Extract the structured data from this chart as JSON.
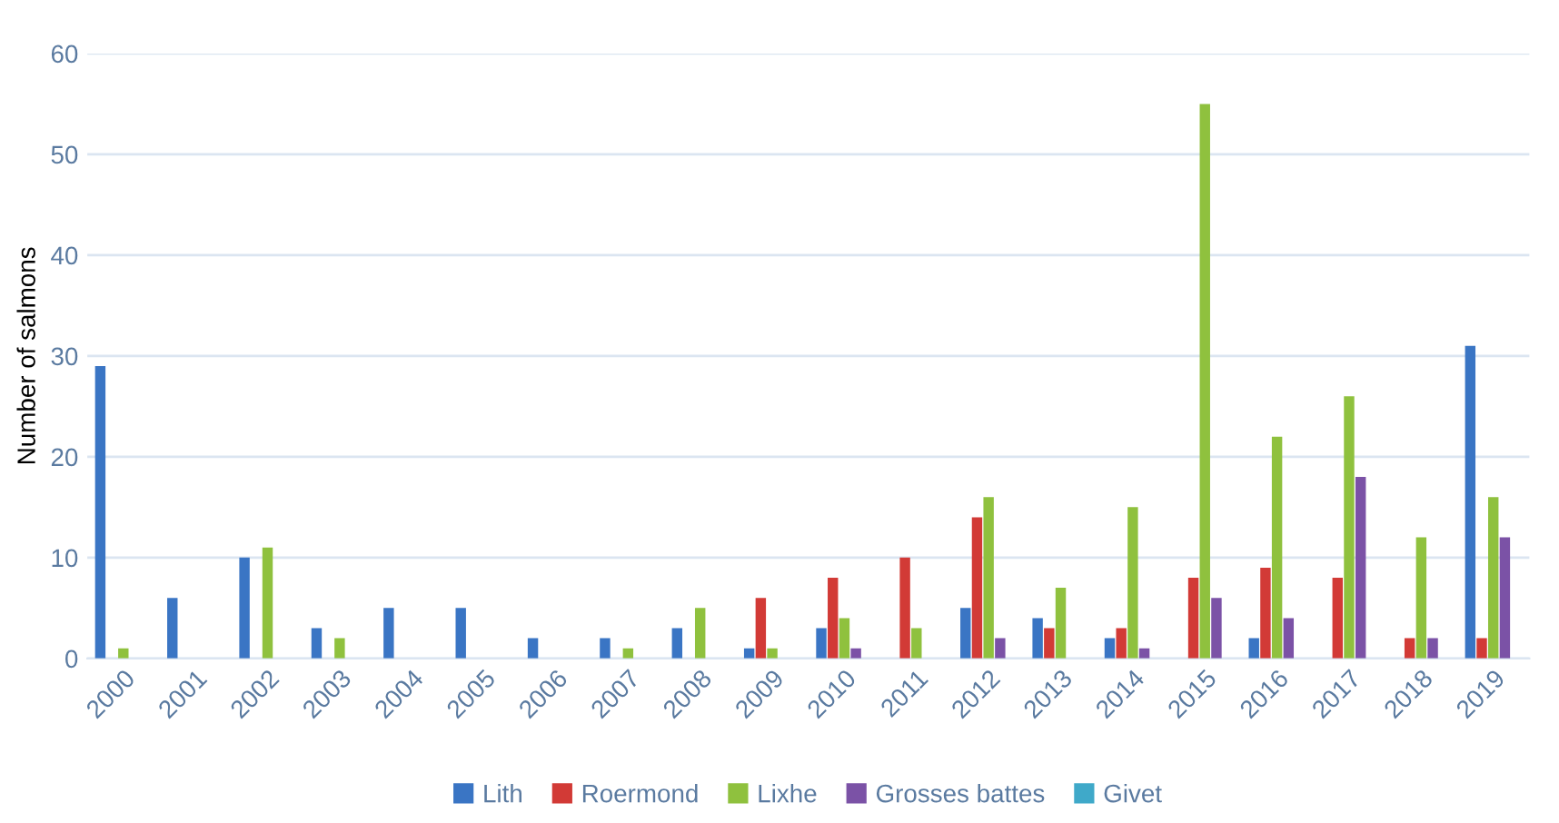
{
  "chart_data": {
    "type": "bar",
    "ylabel": "Number of salmons",
    "categories": [
      "2000",
      "2001",
      "2002",
      "2003",
      "2004",
      "2005",
      "2006",
      "2007",
      "2008",
      "2009",
      "2010",
      "2011",
      "2012",
      "2013",
      "2014",
      "2015",
      "2016",
      "2017",
      "2018",
      "2019"
    ],
    "series": [
      {
        "name": "Lith",
        "color": "#3a75c4",
        "values": [
          29,
          6,
          10,
          3,
          5,
          5,
          2,
          2,
          3,
          1,
          3,
          0,
          5,
          4,
          2,
          0,
          2,
          0,
          0,
          31
        ]
      },
      {
        "name": "Roermond",
        "color": "#d23a36",
        "values": [
          0,
          0,
          0,
          0,
          0,
          0,
          0,
          0,
          0,
          6,
          8,
          10,
          14,
          3,
          3,
          8,
          9,
          8,
          2,
          2
        ]
      },
      {
        "name": "Lixhe",
        "color": "#8fc13e",
        "values": [
          1,
          0,
          11,
          2,
          0,
          0,
          0,
          1,
          5,
          1,
          4,
          3,
          16,
          7,
          15,
          55,
          22,
          26,
          12,
          16
        ]
      },
      {
        "name": "Grosses battes",
        "color": "#7b52a6",
        "values": [
          0,
          0,
          0,
          0,
          0,
          0,
          0,
          0,
          0,
          0,
          1,
          0,
          2,
          0,
          1,
          6,
          4,
          18,
          2,
          12
        ]
      },
      {
        "name": "Givet",
        "color": "#3fa9c9",
        "values": [
          0,
          0,
          0,
          0,
          0,
          0,
          0,
          0,
          0,
          0,
          0,
          0,
          0,
          0,
          0,
          0,
          0,
          0,
          0,
          0
        ]
      }
    ],
    "ylim": [
      0,
      60
    ],
    "yticks": [
      0,
      10,
      20,
      30,
      40,
      50,
      60
    ],
    "grid": "y",
    "legend": "bottom"
  }
}
